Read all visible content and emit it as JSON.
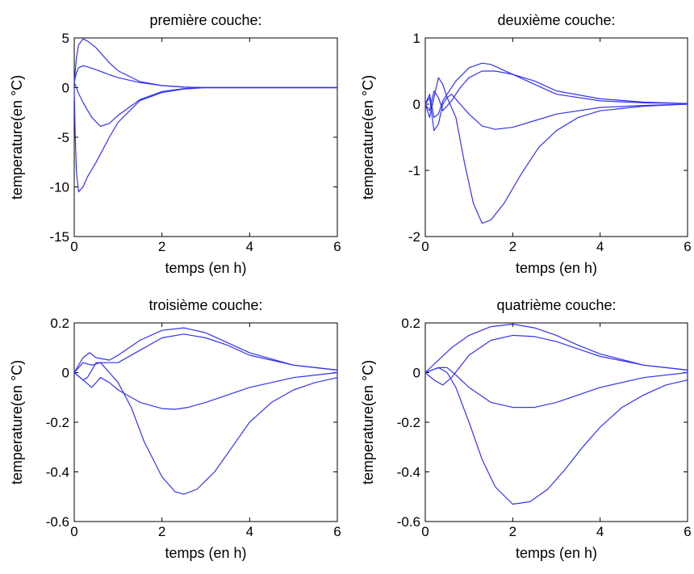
{
  "chart_data": [
    {
      "type": "line",
      "title": "première couche:",
      "xlabel": "temps (en h)",
      "ylabel": "temperature(en °C)",
      "xlim": [
        0,
        6
      ],
      "ylim": [
        -15,
        5
      ],
      "xticks": [
        "0",
        "2",
        "4",
        "6"
      ],
      "yticks": [
        "-15",
        "-10",
        "-5",
        "0",
        "5"
      ],
      "line_color": "#3333ee",
      "grid": false,
      "series": [
        {
          "x": [
            0,
            0.05,
            0.1,
            0.2,
            0.3,
            0.5,
            0.8,
            1.0,
            1.5,
            2.0,
            2.5,
            3.0,
            4.0,
            6.0
          ],
          "y": [
            0.5,
            3.0,
            4.3,
            4.9,
            4.7,
            4.0,
            2.5,
            1.7,
            0.6,
            0.2,
            0.05,
            0,
            0,
            0
          ]
        },
        {
          "x": [
            0,
            0.05,
            0.1,
            0.2,
            0.3,
            0.5,
            0.8,
            1.0,
            1.5,
            2.0,
            2.5,
            3.0,
            4.0,
            6.0
          ],
          "y": [
            0.5,
            1.5,
            2.0,
            2.2,
            2.1,
            1.8,
            1.3,
            1.0,
            0.5,
            0.2,
            0.05,
            0,
            0,
            0
          ]
        },
        {
          "x": [
            0,
            0.05,
            0.1,
            0.2,
            0.4,
            0.6,
            0.8,
            1.0,
            1.5,
            2.0,
            2.5,
            3.0,
            4.0,
            6.0
          ],
          "y": [
            0.5,
            0,
            -0.6,
            -1.5,
            -3.0,
            -3.9,
            -3.6,
            -2.8,
            -1.2,
            -0.4,
            -0.1,
            0,
            0,
            0
          ]
        },
        {
          "x": [
            0,
            0.02,
            0.05,
            0.1,
            0.2,
            0.3,
            0.5,
            0.8,
            1.0,
            1.5,
            2.0,
            2.5,
            3.0,
            4.0,
            6.0
          ],
          "y": [
            0,
            -4.5,
            -8.5,
            -10.5,
            -10.0,
            -9.0,
            -7.5,
            -5.0,
            -3.5,
            -1.3,
            -0.5,
            -0.15,
            0,
            0,
            0
          ]
        }
      ]
    },
    {
      "type": "line",
      "title": "deuxième couche:",
      "xlabel": "temps (en h)",
      "ylabel": "temperature(en °C)",
      "xlim": [
        0,
        6
      ],
      "ylim": [
        -2,
        1
      ],
      "xticks": [
        "0",
        "2",
        "4",
        "6"
      ],
      "yticks": [
        "-2",
        "-1",
        "0",
        "1"
      ],
      "line_color": "#3333ee",
      "grid": false,
      "series": [
        {
          "x": [
            0,
            0.1,
            0.2,
            0.3,
            0.4,
            0.5,
            0.7,
            1.0,
            1.3,
            1.5,
            2.0,
            2.5,
            3.0,
            4.0,
            5.0,
            6.0
          ],
          "y": [
            0,
            0.15,
            -0.2,
            -0.15,
            0.05,
            0.15,
            0.35,
            0.55,
            0.62,
            0.6,
            0.45,
            0.3,
            0.15,
            0.05,
            0.02,
            0.01
          ]
        },
        {
          "x": [
            0,
            0.1,
            0.2,
            0.3,
            0.4,
            0.6,
            0.8,
            1.0,
            1.3,
            1.6,
            2.0,
            2.5,
            3.0,
            4.0,
            5.0,
            6.0
          ],
          "y": [
            0,
            -0.1,
            0.2,
            0.1,
            -0.1,
            0.05,
            0.25,
            0.4,
            0.5,
            0.5,
            0.45,
            0.35,
            0.2,
            0.08,
            0.03,
            0.01
          ]
        },
        {
          "x": [
            0,
            0.1,
            0.2,
            0.3,
            0.4,
            0.5,
            0.6,
            0.8,
            1.0,
            1.3,
            1.6,
            2.0,
            2.5,
            3.0,
            4.0,
            5.0,
            6.0
          ],
          "y": [
            0,
            -0.2,
            0.1,
            0.4,
            0.3,
            0.1,
            0.15,
            0.0,
            -0.15,
            -0.33,
            -0.38,
            -0.35,
            -0.25,
            -0.15,
            -0.05,
            -0.02,
            0
          ]
        },
        {
          "x": [
            0,
            0.1,
            0.2,
            0.3,
            0.4,
            0.5,
            0.7,
            0.9,
            1.1,
            1.3,
            1.5,
            1.8,
            2.2,
            2.6,
            3.0,
            3.5,
            4.0,
            5.0,
            6.0
          ],
          "y": [
            0,
            0.1,
            -0.4,
            -0.3,
            0.0,
            0.1,
            -0.2,
            -0.9,
            -1.5,
            -1.8,
            -1.75,
            -1.5,
            -1.05,
            -0.65,
            -0.4,
            -0.2,
            -0.1,
            -0.03,
            0
          ]
        }
      ]
    },
    {
      "type": "line",
      "title": "troisième couche:",
      "xlabel": "temps (en h)",
      "ylabel": "temperature(en °C)",
      "xlim": [
        0,
        6
      ],
      "ylim": [
        -0.6,
        0.2
      ],
      "xticks": [
        "0",
        "2",
        "4",
        "6"
      ],
      "yticks": [
        "-0.6",
        "-0.4",
        "-0.2",
        "0",
        "0.2"
      ],
      "line_color": "#3333ee",
      "grid": false,
      "series": [
        {
          "x": [
            0,
            0.2,
            0.35,
            0.5,
            0.8,
            1.0,
            1.5,
            2.0,
            2.5,
            3.0,
            3.5,
            4.0,
            5.0,
            6.0
          ],
          "y": [
            0,
            0.06,
            0.08,
            0.06,
            0.05,
            0.07,
            0.13,
            0.17,
            0.18,
            0.16,
            0.12,
            0.08,
            0.03,
            0.01
          ]
        },
        {
          "x": [
            0,
            0.2,
            0.3,
            0.5,
            0.7,
            1.0,
            1.5,
            2.0,
            2.5,
            3.0,
            3.5,
            4.0,
            5.0,
            6.0
          ],
          "y": [
            0,
            -0.03,
            -0.02,
            0.04,
            0.04,
            0.04,
            0.09,
            0.14,
            0.155,
            0.14,
            0.11,
            0.07,
            0.03,
            0.01
          ]
        },
        {
          "x": [
            0,
            0.2,
            0.4,
            0.6,
            0.8,
            1.0,
            1.5,
            2.0,
            2.3,
            2.6,
            3.0,
            3.5,
            4.0,
            5.0,
            6.0
          ],
          "y": [
            0,
            -0.03,
            -0.06,
            -0.02,
            -0.04,
            -0.07,
            -0.12,
            -0.145,
            -0.148,
            -0.14,
            -0.12,
            -0.09,
            -0.06,
            -0.02,
            0
          ]
        },
        {
          "x": [
            0,
            0.2,
            0.4,
            0.6,
            0.8,
            1.0,
            1.3,
            1.6,
            2.0,
            2.3,
            2.5,
            2.8,
            3.2,
            3.6,
            4.0,
            4.5,
            5.0,
            5.5,
            6.0
          ],
          "y": [
            0,
            0.04,
            0.03,
            0.04,
            0.0,
            -0.04,
            -0.14,
            -0.28,
            -0.42,
            -0.48,
            -0.49,
            -0.47,
            -0.4,
            -0.3,
            -0.2,
            -0.12,
            -0.07,
            -0.04,
            -0.02
          ]
        }
      ]
    },
    {
      "type": "line",
      "title": "quatrième couche:",
      "xlabel": "temps (en h)",
      "ylabel": "temperature(en °C)",
      "xlim": [
        0,
        6
      ],
      "ylim": [
        -0.6,
        0.2
      ],
      "xticks": [
        "0",
        "2",
        "4",
        "6"
      ],
      "yticks": [
        "-0.6",
        "-0.4",
        "-0.2",
        "0",
        "0.2"
      ],
      "line_color": "#3333ee",
      "grid": false,
      "series": [
        {
          "x": [
            0,
            0.3,
            0.6,
            1.0,
            1.5,
            2.0,
            2.5,
            3.0,
            3.5,
            4.0,
            5.0,
            6.0
          ],
          "y": [
            0,
            0.05,
            0.1,
            0.15,
            0.185,
            0.195,
            0.18,
            0.15,
            0.11,
            0.075,
            0.03,
            0.01
          ]
        },
        {
          "x": [
            0,
            0.2,
            0.4,
            0.6,
            1.0,
            1.5,
            2.0,
            2.5,
            3.0,
            3.5,
            4.0,
            5.0,
            6.0
          ],
          "y": [
            0,
            -0.03,
            -0.05,
            -0.02,
            0.07,
            0.13,
            0.15,
            0.145,
            0.125,
            0.095,
            0.065,
            0.03,
            0.01
          ]
        },
        {
          "x": [
            0,
            0.3,
            0.5,
            0.7,
            1.0,
            1.5,
            2.0,
            2.5,
            3.0,
            3.5,
            4.0,
            5.0,
            6.0
          ],
          "y": [
            0,
            0.02,
            0.02,
            -0.01,
            -0.06,
            -0.12,
            -0.14,
            -0.14,
            -0.12,
            -0.09,
            -0.06,
            -0.02,
            0
          ]
        },
        {
          "x": [
            0,
            0.3,
            0.5,
            0.7,
            1.0,
            1.3,
            1.6,
            2.0,
            2.4,
            2.8,
            3.2,
            3.6,
            4.0,
            4.5,
            5.0,
            5.5,
            6.0
          ],
          "y": [
            0,
            0.02,
            0.0,
            -0.06,
            -0.2,
            -0.35,
            -0.46,
            -0.53,
            -0.52,
            -0.47,
            -0.39,
            -0.3,
            -0.22,
            -0.14,
            -0.09,
            -0.05,
            -0.03
          ]
        }
      ]
    }
  ]
}
